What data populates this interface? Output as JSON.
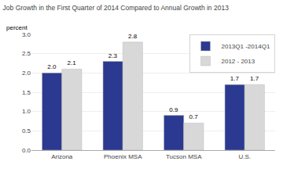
{
  "chart_data": {
    "type": "bar",
    "title": "Job Growth in the First Quarter of 2014 Compared to Annual Growth in 2013",
    "y_label": "percent",
    "categories": [
      "Arizona",
      "Phoenix MSA",
      "Tucson MSA",
      "U.S."
    ],
    "series": [
      {
        "name": "2013Q1 -2014Q1",
        "color": "#2B3990",
        "values": [
          2.0,
          2.3,
          0.9,
          1.7
        ],
        "value_labels": [
          "2.0",
          "2.3",
          "0.9",
          "1.7"
        ]
      },
      {
        "name": "2012 - 2013",
        "color": "#D8D8D8",
        "values": [
          2.1,
          2.8,
          0.7,
          1.7
        ],
        "value_labels": [
          "2.1",
          "2.8",
          "0.7",
          "1.7"
        ]
      }
    ],
    "ylim": [
      0.0,
      3.0
    ],
    "yticks": [
      {
        "value": 0,
        "label": "0.0"
      },
      0.5,
      {
        "value": 1,
        "label": "1.0"
      },
      1.5,
      {
        "value": 2,
        "label": "2.0"
      },
      2.5,
      {
        "value": 3,
        "label": "3.0"
      }
    ],
    "grid": true,
    "legend": "upper right",
    "data_labels": true
  }
}
